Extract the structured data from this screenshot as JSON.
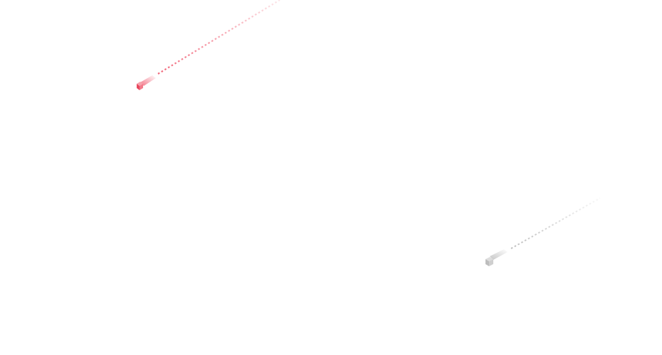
{
  "meteors": [
    {
      "name": "red-meteor",
      "color": "#f0566c"
    },
    {
      "name": "gray-meteor",
      "color": "#b8b8b8"
    }
  ]
}
